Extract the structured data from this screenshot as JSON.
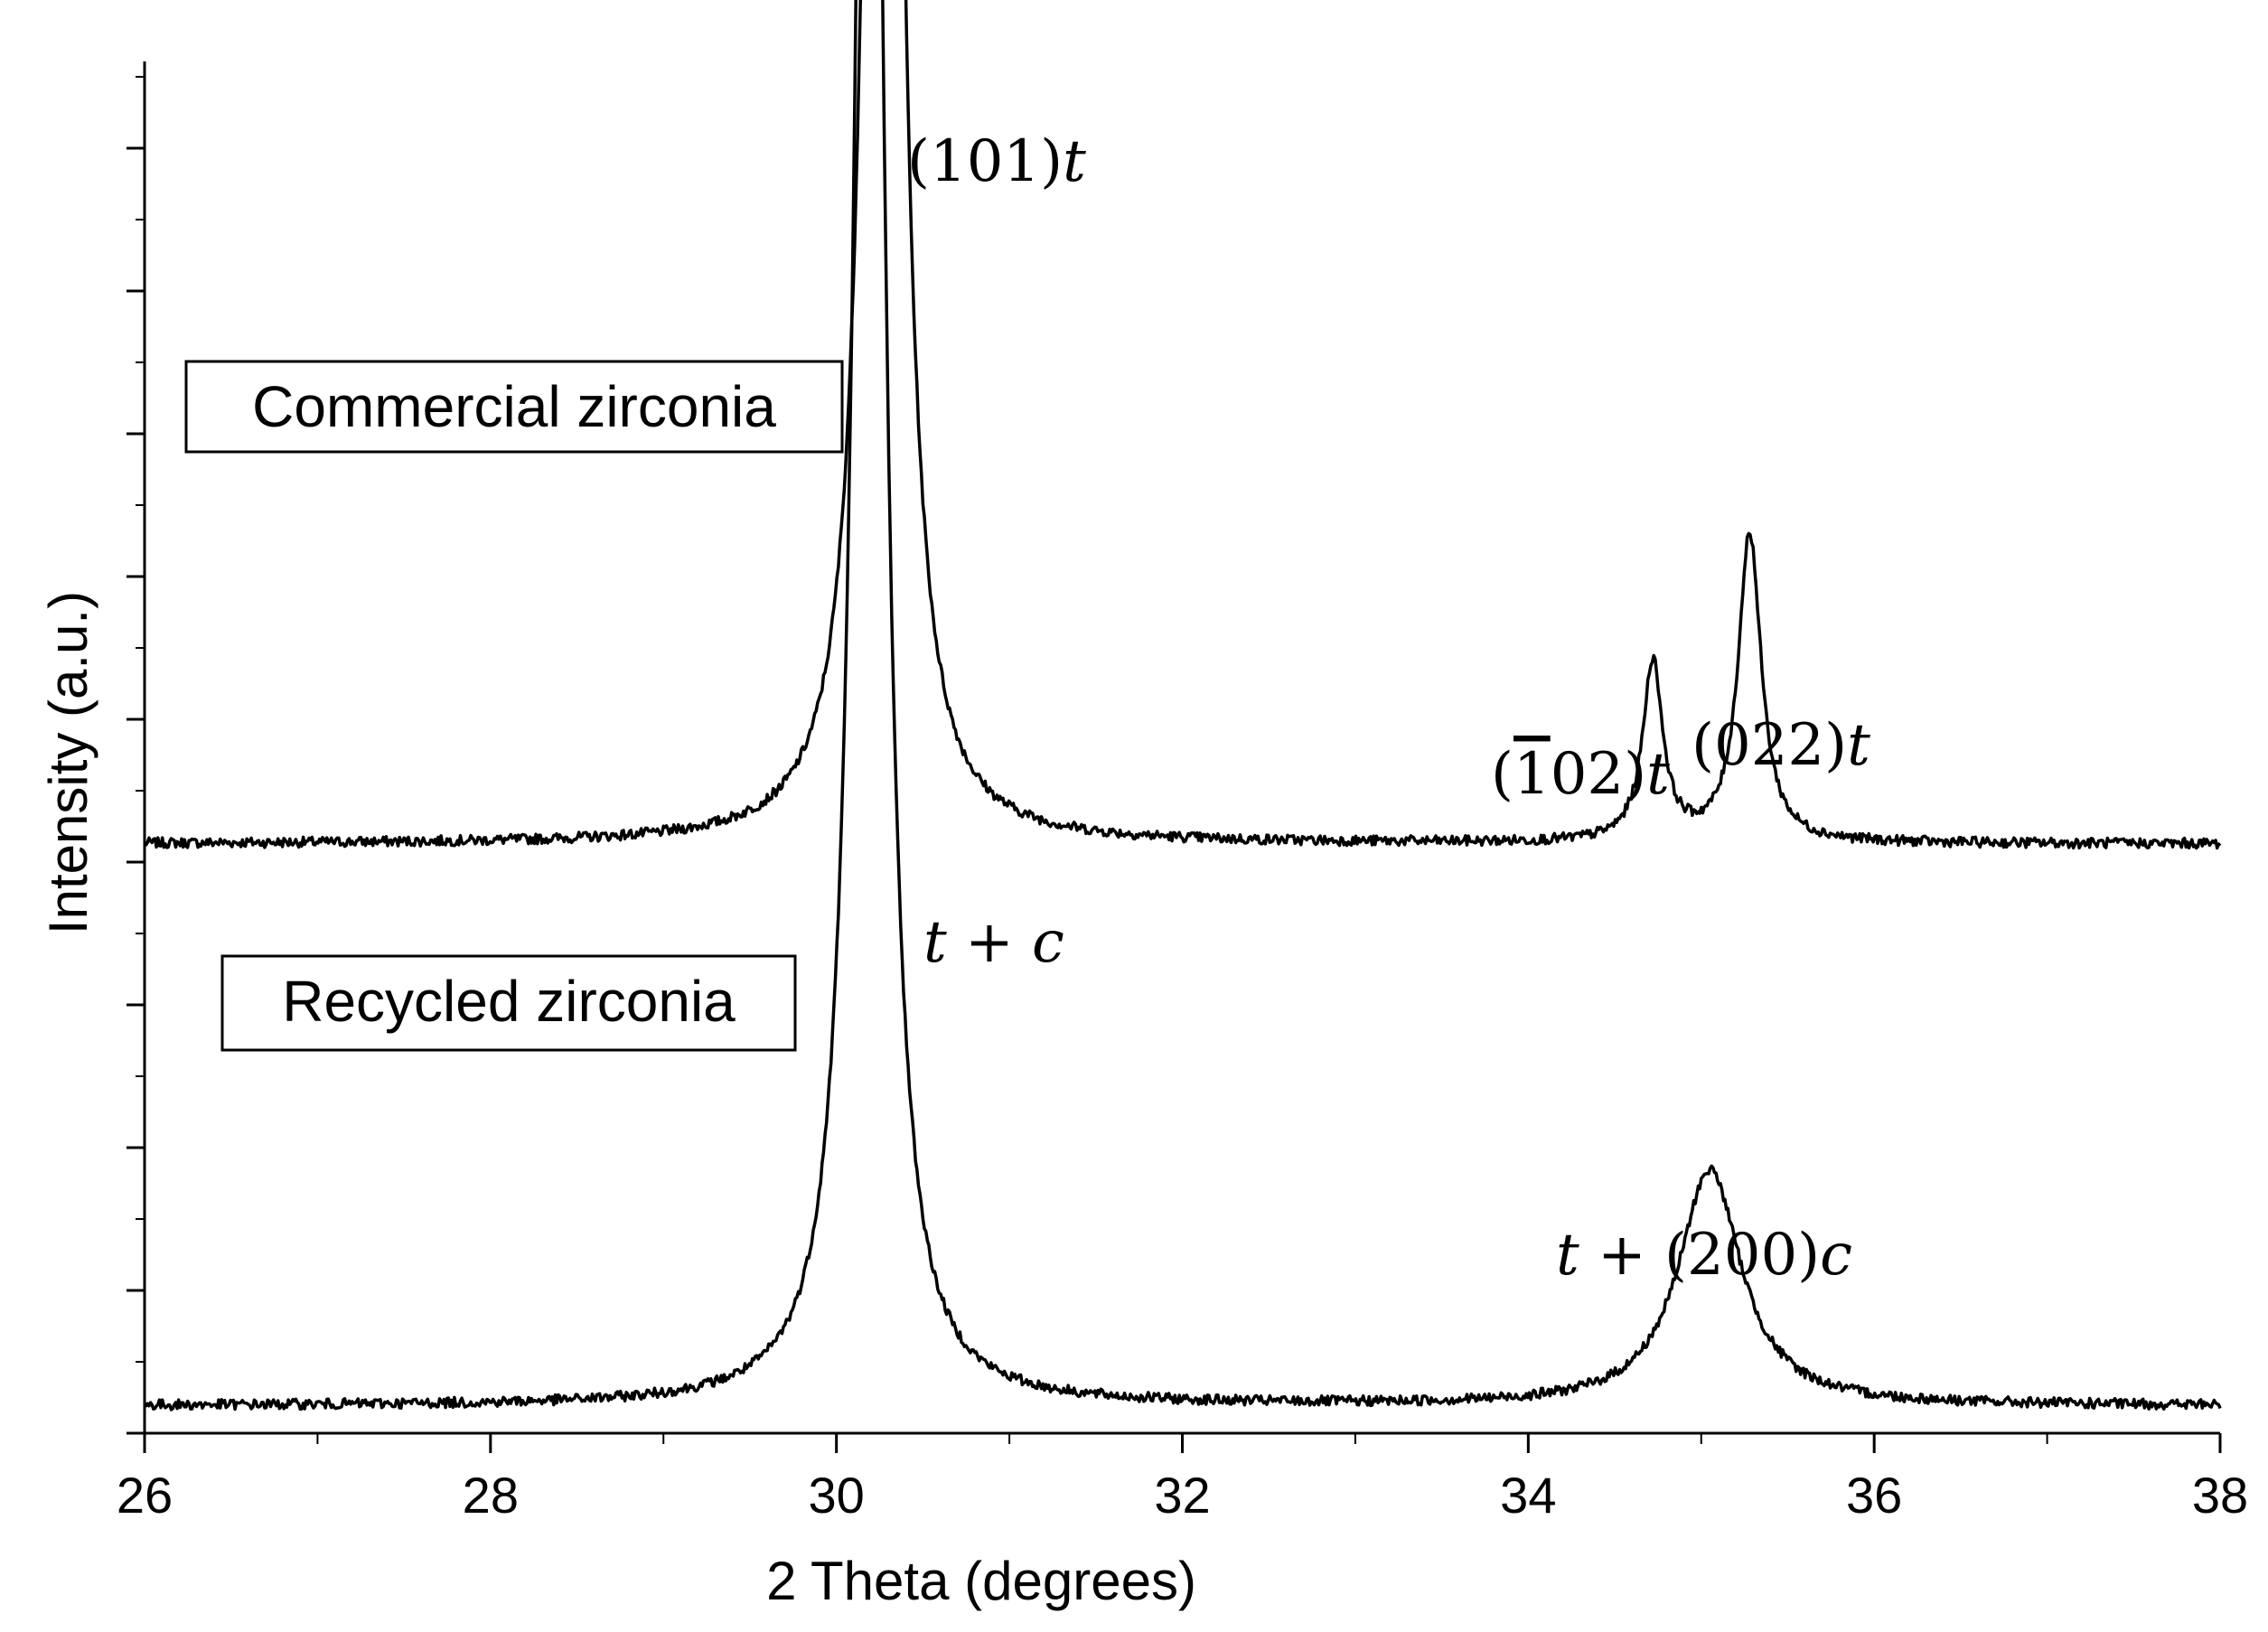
{
  "chart_data": {
    "type": "line",
    "xlabel": "2 Theta (degrees)",
    "ylabel": "Intensity (a.u.)",
    "xlim": [
      26,
      38
    ],
    "x_ticks": [
      "26",
      "28",
      "30",
      "32",
      "34",
      "36",
      "38"
    ],
    "y_ticks_labeled": false,
    "grid": false,
    "series": [
      {
        "name": "Commercial zirconia",
        "baseline": 1.0,
        "peaks": [
          {
            "x": 30.27,
            "height": 5.1,
            "width": 0.085,
            "label": "(101)t"
          },
          {
            "x": 34.72,
            "height": 0.32,
            "width": 0.07,
            "label": "(̅102)t"
          },
          {
            "x": 35.28,
            "height": 0.55,
            "width": 0.08,
            "label": "(022)t"
          }
        ]
      },
      {
        "name": "Recycled zirconia",
        "baseline": 0.0,
        "peaks": [
          {
            "x": 30.19,
            "height": 4.35,
            "width": 0.09,
            "label": "t + c"
          },
          {
            "x": 35.05,
            "height": 0.42,
            "width": 0.22,
            "label": "t + (200)c"
          }
        ]
      }
    ]
  },
  "labels": {
    "commercial_box": "Commercial zirconia",
    "recycled_box": "Recycled zirconia",
    "peak_101": [
      "(101)",
      "t"
    ],
    "peak_102": [
      "(",
      "1",
      "02)",
      "t"
    ],
    "peak_022": [
      "(022)",
      "t"
    ],
    "peak_tc": [
      "t",
      " + ",
      "c"
    ],
    "peak_t200c": [
      "t",
      " + (200)",
      "c"
    ]
  }
}
